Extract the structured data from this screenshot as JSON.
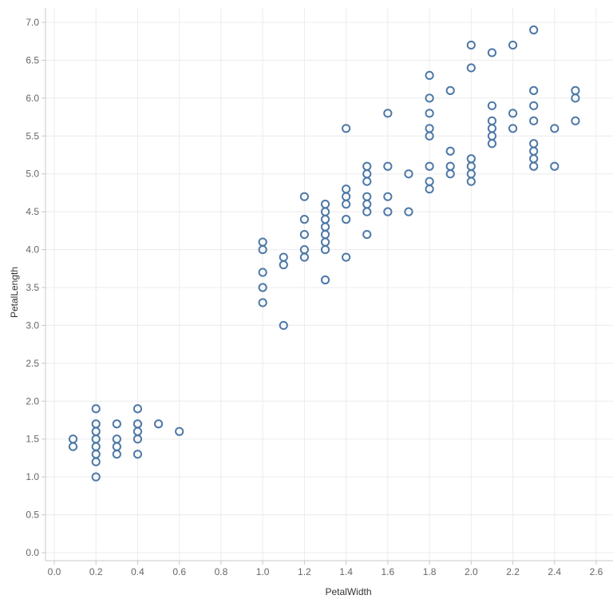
{
  "chart_data": {
    "type": "scatter",
    "title": "",
    "xlabel": "PetalWidth",
    "ylabel": "PetalLength",
    "xlim": [
      -0.05,
      2.65
    ],
    "ylim": [
      -0.1,
      7.2
    ],
    "xticks": [
      "0.0",
      "0.2",
      "0.4",
      "0.6",
      "0.8",
      "1.0",
      "1.2",
      "1.4",
      "1.6",
      "1.8",
      "2.0",
      "2.2",
      "2.4",
      "2.6"
    ],
    "yticks": [
      "0.0",
      "0.5",
      "1.0",
      "1.5",
      "2.0",
      "2.5",
      "3.0",
      "3.5",
      "4.0",
      "4.5",
      "5.0",
      "5.5",
      "6.0",
      "6.5",
      "7.0"
    ],
    "grid": true,
    "series": [
      {
        "color": "#4e79a7",
        "points": [
          [
            0.1,
            1.5
          ],
          [
            0.1,
            1.4
          ],
          [
            0.2,
            1.9
          ],
          [
            0.2,
            1.7
          ],
          [
            0.2,
            1.6
          ],
          [
            0.2,
            1.5
          ],
          [
            0.2,
            1.4
          ],
          [
            0.2,
            1.3
          ],
          [
            0.2,
            1.2
          ],
          [
            0.2,
            1.0
          ],
          [
            0.3,
            1.7
          ],
          [
            0.3,
            1.5
          ],
          [
            0.3,
            1.4
          ],
          [
            0.3,
            1.3
          ],
          [
            0.4,
            1.9
          ],
          [
            0.4,
            1.7
          ],
          [
            0.4,
            1.6
          ],
          [
            0.4,
            1.5
          ],
          [
            0.4,
            1.3
          ],
          [
            0.5,
            1.7
          ],
          [
            0.6,
            1.6
          ],
          [
            1.0,
            4.1
          ],
          [
            1.0,
            4.0
          ],
          [
            1.0,
            3.7
          ],
          [
            1.0,
            3.5
          ],
          [
            1.0,
            3.3
          ],
          [
            1.1,
            3.9
          ],
          [
            1.1,
            3.8
          ],
          [
            1.1,
            3.0
          ],
          [
            1.2,
            4.7
          ],
          [
            1.2,
            4.4
          ],
          [
            1.2,
            4.2
          ],
          [
            1.2,
            4.0
          ],
          [
            1.2,
            3.9
          ],
          [
            1.3,
            4.6
          ],
          [
            1.3,
            4.5
          ],
          [
            1.3,
            4.4
          ],
          [
            1.3,
            4.3
          ],
          [
            1.3,
            4.2
          ],
          [
            1.3,
            4.1
          ],
          [
            1.3,
            4.0
          ],
          [
            1.3,
            3.6
          ],
          [
            1.4,
            5.6
          ],
          [
            1.4,
            4.8
          ],
          [
            1.4,
            4.7
          ],
          [
            1.4,
            4.6
          ],
          [
            1.4,
            4.4
          ],
          [
            1.4,
            3.9
          ],
          [
            1.5,
            5.1
          ],
          [
            1.5,
            5.0
          ],
          [
            1.5,
            4.9
          ],
          [
            1.5,
            4.7
          ],
          [
            1.5,
            4.6
          ],
          [
            1.5,
            4.5
          ],
          [
            1.5,
            4.2
          ],
          [
            1.6,
            5.8
          ],
          [
            1.6,
            5.1
          ],
          [
            1.6,
            4.7
          ],
          [
            1.6,
            4.5
          ],
          [
            1.7,
            5.0
          ],
          [
            1.7,
            4.5
          ],
          [
            1.8,
            6.3
          ],
          [
            1.8,
            6.0
          ],
          [
            1.8,
            5.8
          ],
          [
            1.8,
            5.6
          ],
          [
            1.8,
            5.5
          ],
          [
            1.8,
            5.1
          ],
          [
            1.8,
            4.9
          ],
          [
            1.8,
            4.8
          ],
          [
            1.9,
            6.1
          ],
          [
            1.9,
            5.3
          ],
          [
            1.9,
            5.1
          ],
          [
            1.9,
            5.0
          ],
          [
            2.0,
            6.7
          ],
          [
            2.0,
            6.4
          ],
          [
            2.0,
            5.2
          ],
          [
            2.0,
            5.1
          ],
          [
            2.0,
            5.0
          ],
          [
            2.0,
            4.9
          ],
          [
            2.1,
            6.6
          ],
          [
            2.1,
            5.9
          ],
          [
            2.1,
            5.7
          ],
          [
            2.1,
            5.6
          ],
          [
            2.1,
            5.5
          ],
          [
            2.1,
            5.4
          ],
          [
            2.2,
            6.7
          ],
          [
            2.2,
            5.8
          ],
          [
            2.2,
            5.6
          ],
          [
            2.3,
            6.9
          ],
          [
            2.3,
            6.1
          ],
          [
            2.3,
            5.9
          ],
          [
            2.3,
            5.7
          ],
          [
            2.3,
            5.4
          ],
          [
            2.3,
            5.3
          ],
          [
            2.3,
            5.2
          ],
          [
            2.3,
            5.1
          ],
          [
            2.4,
            5.6
          ],
          [
            2.4,
            5.1
          ],
          [
            2.5,
            6.1
          ],
          [
            2.5,
            6.0
          ],
          [
            2.5,
            5.7
          ]
        ]
      }
    ]
  }
}
